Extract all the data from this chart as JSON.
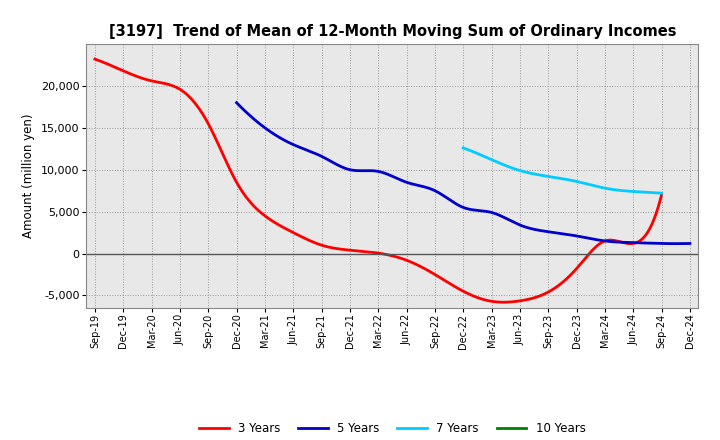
{
  "title": "[3197]  Trend of Mean of 12-Month Moving Sum of Ordinary Incomes",
  "ylabel": "Amount (million yen)",
  "ylim": [
    -6500,
    25000
  ],
  "yticks": [
    -5000,
    0,
    5000,
    10000,
    15000,
    20000
  ],
  "background_color": "#ffffff",
  "plot_bg_color": "#e8e8e8",
  "grid_color": "#999999",
  "x_labels": [
    "Sep-19",
    "Dec-19",
    "Mar-20",
    "Jun-20",
    "Sep-20",
    "Dec-20",
    "Mar-21",
    "Jun-21",
    "Sep-21",
    "Dec-21",
    "Mar-22",
    "Jun-22",
    "Sep-22",
    "Dec-22",
    "Mar-23",
    "Jun-23",
    "Sep-23",
    "Dec-23",
    "Mar-24",
    "Jun-24",
    "Sep-24",
    "Dec-24"
  ],
  "series_3y": {
    "color": "#ff0000",
    "label": "3 Years",
    "x_indices": [
      0,
      1,
      2,
      3,
      4,
      5,
      6,
      7,
      8,
      9,
      10,
      11,
      12,
      13,
      14,
      15,
      16,
      17,
      18,
      19,
      20
    ],
    "values": [
      23200,
      21800,
      20600,
      19600,
      15500,
      8500,
      4500,
      2500,
      1000,
      400,
      50,
      -800,
      -2500,
      -4500,
      -5700,
      -5650,
      -4600,
      -1800,
      1500,
      1200,
      7000
    ]
  },
  "series_5y": {
    "color": "#0000cc",
    "label": "5 Years",
    "x_indices": [
      5,
      6,
      7,
      8,
      9,
      10,
      11,
      12,
      13,
      14,
      15,
      16,
      17,
      18,
      19,
      20,
      21
    ],
    "values": [
      18000,
      15000,
      13000,
      11600,
      10000,
      9800,
      8500,
      7500,
      5500,
      4900,
      3400,
      2600,
      2100,
      1500,
      1300,
      1200,
      1200
    ]
  },
  "series_7y": {
    "color": "#00ccff",
    "label": "7 Years",
    "x_indices": [
      13,
      14,
      15,
      16,
      17,
      18,
      19,
      20
    ],
    "values": [
      12600,
      11200,
      9900,
      9200,
      8600,
      7800,
      7400,
      7200
    ]
  },
  "series_10y": {
    "color": "#008000",
    "label": "10 Years",
    "x_indices": [],
    "values": []
  },
  "legend_entries": [
    "3 Years",
    "5 Years",
    "7 Years",
    "10 Years"
  ],
  "legend_colors": [
    "#ff0000",
    "#0000cc",
    "#00ccff",
    "#008000"
  ]
}
